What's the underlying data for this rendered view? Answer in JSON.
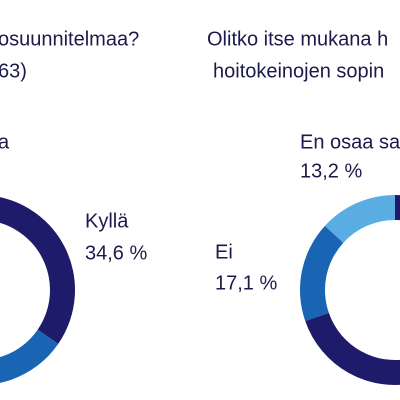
{
  "chart_data": [
    {
      "type": "pie",
      "donut": true,
      "title": [
        "osuunnitelmaa?",
        "63)"
      ],
      "categories": [
        "Kyllä",
        null,
        "a"
      ],
      "values": [
        34.6,
        20,
        45.4
      ],
      "value_labels": [
        "34,6 %",
        null,
        null
      ],
      "colors": [
        "#1f1b6b",
        "#1a64b4",
        "#1f1b6b"
      ]
    },
    {
      "type": "pie",
      "donut": true,
      "title": [
        "Olitko itse mukana h",
        "hoitokeinojen sopin"
      ],
      "categories": [
        null,
        "Ei",
        "En osaa sa"
      ],
      "values": [
        69.7,
        17.1,
        13.2
      ],
      "value_labels": [
        null,
        "17,1 %",
        "13,2 %"
      ],
      "colors": [
        "#1f1b6b",
        "#1a64b4",
        "#5aade2"
      ]
    }
  ]
}
